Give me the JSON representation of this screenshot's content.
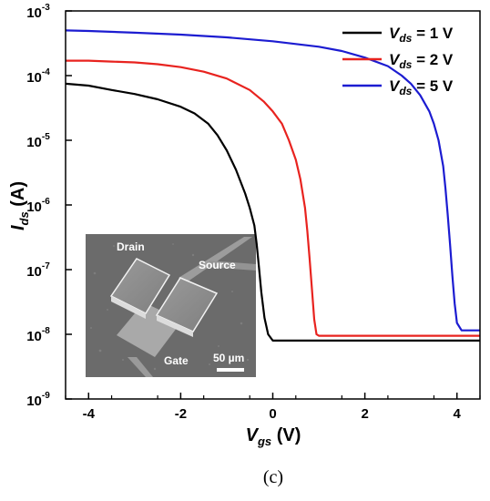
{
  "chart_data": {
    "type": "line",
    "title": "",
    "xlabel": {
      "main": "V",
      "sub": "gs",
      "unit": " (V)"
    },
    "ylabel": {
      "main": "I",
      "sub": "ds",
      "unit": " (A)"
    },
    "xlim": [
      -4.5,
      4.5
    ],
    "ylim": [
      1e-09,
      0.001
    ],
    "yscale": "log",
    "x_ticks": [
      -4,
      -2,
      0,
      2,
      4
    ],
    "x_tick_labels": [
      "-4",
      "-2",
      "0",
      "2",
      "4"
    ],
    "y_ticks": [
      1e-09,
      1e-08,
      1e-07,
      1e-06,
      1e-05,
      0.0001,
      0.001
    ],
    "y_tick_labels": [
      {
        "base": "10",
        "exp": "-9"
      },
      {
        "base": "10",
        "exp": "-8"
      },
      {
        "base": "10",
        "exp": "-7"
      },
      {
        "base": "10",
        "exp": "-6"
      },
      {
        "base": "10",
        "exp": "-5"
      },
      {
        "base": "10",
        "exp": "-4"
      },
      {
        "base": "10",
        "exp": "-3"
      }
    ],
    "grid": false,
    "legend_position": "top-right",
    "series": [
      {
        "name": {
          "main": "V",
          "sub": "ds",
          "rest": " = 1 V"
        },
        "color": "#000000",
        "points": [
          [
            -4.5,
            7.5e-05
          ],
          [
            -4,
            7e-05
          ],
          [
            -3.5,
            6e-05
          ],
          [
            -3,
            5.2e-05
          ],
          [
            -2.5,
            4.3e-05
          ],
          [
            -2,
            3.3e-05
          ],
          [
            -1.7,
            2.6e-05
          ],
          [
            -1.4,
            1.8e-05
          ],
          [
            -1.2,
            1.2e-05
          ],
          [
            -1,
            7e-06
          ],
          [
            -0.8,
            3.5e-06
          ],
          [
            -0.6,
            1.5e-06
          ],
          [
            -0.5,
            9e-07
          ],
          [
            -0.4,
            4.8e-07
          ],
          [
            -0.35,
            2.5e-07
          ],
          [
            -0.3,
            1.1e-07
          ],
          [
            -0.25,
            4.5e-08
          ],
          [
            -0.18,
            1.8e-08
          ],
          [
            -0.1,
            1e-08
          ],
          [
            0,
            8e-09
          ],
          [
            1,
            8e-09
          ],
          [
            2,
            8e-09
          ],
          [
            3,
            8e-09
          ],
          [
            4,
            8e-09
          ],
          [
            4.5,
            8e-09
          ]
        ]
      },
      {
        "name": {
          "main": "V",
          "sub": "ds",
          "rest": " = 2 V"
        },
        "color": "#e8231f",
        "points": [
          [
            -4.5,
            0.00017
          ],
          [
            -4,
            0.00017
          ],
          [
            -3.5,
            0.000165
          ],
          [
            -3,
            0.00016
          ],
          [
            -2.5,
            0.00015
          ],
          [
            -2,
            0.000135
          ],
          [
            -1.5,
            0.000115
          ],
          [
            -1,
            9e-05
          ],
          [
            -0.5,
            6e-05
          ],
          [
            -0.2,
            4e-05
          ],
          [
            0,
            2.8e-05
          ],
          [
            0.2,
            1.8e-05
          ],
          [
            0.35,
            1e-05
          ],
          [
            0.5,
            5e-06
          ],
          [
            0.6,
            2.5e-06
          ],
          [
            0.7,
            9e-07
          ],
          [
            0.75,
            4e-07
          ],
          [
            0.8,
            1.5e-07
          ],
          [
            0.85,
            5e-08
          ],
          [
            0.9,
            1.7e-08
          ],
          [
            0.95,
            1e-08
          ],
          [
            1,
            9.5e-09
          ],
          [
            2,
            9.5e-09
          ],
          [
            3,
            9.5e-09
          ],
          [
            4,
            9.5e-09
          ],
          [
            4.5,
            9.5e-09
          ]
        ]
      },
      {
        "name": {
          "main": "V",
          "sub": "ds",
          "rest": " = 5 V"
        },
        "color": "#1c1cd1",
        "points": [
          [
            -4.5,
            0.0005
          ],
          [
            -4,
            0.00049
          ],
          [
            -3,
            0.00046
          ],
          [
            -2,
            0.00043
          ],
          [
            -1,
            0.00039
          ],
          [
            0,
            0.00034
          ],
          [
            1,
            0.00028
          ],
          [
            1.5,
            0.00024
          ],
          [
            2,
            0.00019
          ],
          [
            2.5,
            0.00014
          ],
          [
            2.8,
            0.0001
          ],
          [
            3,
            7.5e-05
          ],
          [
            3.2,
            5e-05
          ],
          [
            3.4,
            2.8e-05
          ],
          [
            3.5,
            1.8e-05
          ],
          [
            3.6,
            1e-05
          ],
          [
            3.7,
            4e-06
          ],
          [
            3.75,
            1.8e-06
          ],
          [
            3.8,
            7e-07
          ],
          [
            3.85,
            2.5e-07
          ],
          [
            3.9,
            8e-08
          ],
          [
            3.95,
            3e-08
          ],
          [
            4,
            1.5e-08
          ],
          [
            4.1,
            1.15e-08
          ],
          [
            4.5,
            1.15e-08
          ]
        ]
      }
    ],
    "inset": {
      "labels": [
        "Drain",
        "Source",
        "Gate"
      ],
      "scale_bar": "50 µm"
    },
    "caption": "(c)"
  }
}
